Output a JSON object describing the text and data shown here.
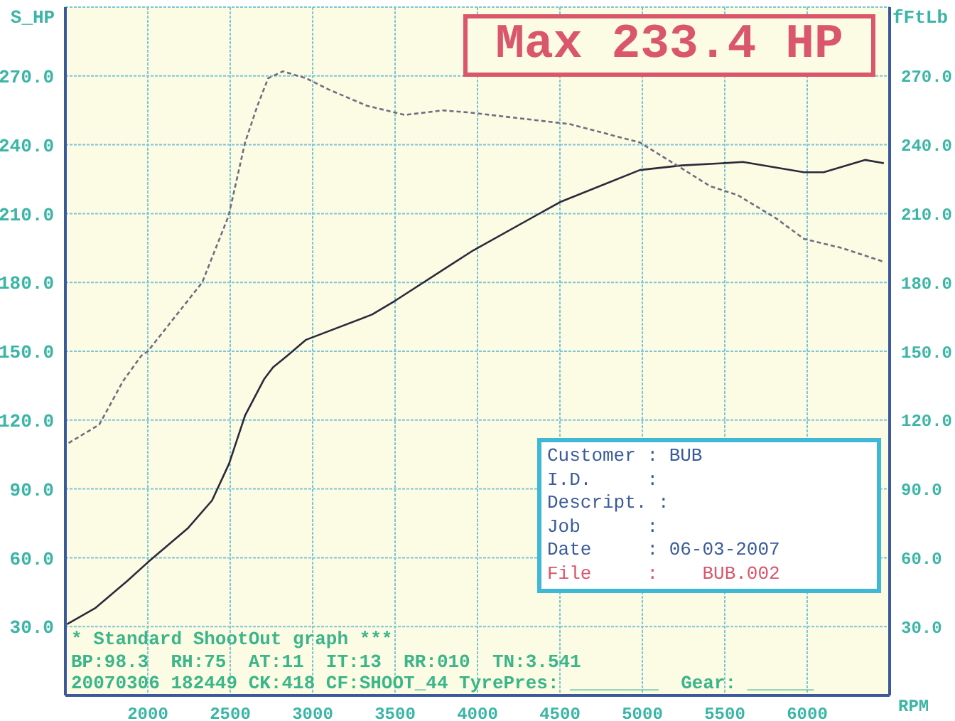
{
  "chart_data": {
    "type": "line",
    "xlabel": "RPM",
    "ylabel": "S_HP",
    "y2label": "fFtLb",
    "xlim": [
      1500,
      6500
    ],
    "xticks": [
      2000,
      2500,
      3000,
      3500,
      4000,
      4500,
      5000,
      5500,
      6000
    ],
    "ylim": [
      0,
      300
    ],
    "yticks": [
      {
        "value": 30,
        "label": "30.0"
      },
      {
        "value": 60,
        "label": "60.0"
      },
      {
        "value": 90,
        "label": "90.0"
      },
      {
        "value": 120,
        "label": "120.0"
      },
      {
        "value": 150,
        "label": "150.0"
      },
      {
        "value": 180,
        "label": "180.0"
      },
      {
        "value": 210,
        "label": "210.0"
      },
      {
        "value": 240,
        "label": "240.0"
      },
      {
        "value": 270,
        "label": "270.0"
      }
    ],
    "y2lim": [
      0,
      300
    ],
    "y2ticks": [
      {
        "value": 30,
        "label": "30.0"
      },
      {
        "value": 60,
        "label": "60.0"
      },
      {
        "value": 90,
        "label": "90.0"
      },
      {
        "value": 120,
        "label": "120.0"
      },
      {
        "value": 150,
        "label": "150.0"
      },
      {
        "value": 180,
        "label": "180.0"
      },
      {
        "value": 210,
        "label": "210.0"
      },
      {
        "value": 240,
        "label": "240.0"
      },
      {
        "value": 270,
        "label": "270.0"
      }
    ],
    "grid": true,
    "series": [
      {
        "color": "#2a2a3c",
        "line_style": "solid",
        "x": [
          1510,
          1680,
          1877,
          2000,
          2245,
          2390,
          2493,
          2590,
          2707,
          2760,
          2845,
          2960,
          3360,
          3500,
          3845,
          3975,
          4500,
          4985,
          5240,
          5500,
          5610,
          5980,
          6100,
          6350,
          6465
        ],
        "values": [
          31,
          38,
          50,
          58,
          73,
          85,
          101,
          122,
          138,
          143,
          148,
          155,
          166,
          172,
          188,
          194,
          215,
          229,
          231,
          232,
          232.5,
          228,
          228,
          233.4,
          232
        ]
      },
      {
        "color": "#6e6e80",
        "line_style": "dashed",
        "x": [
          1520,
          1705,
          1850,
          1960,
          2000,
          2330,
          2490,
          2590,
          2665,
          2730,
          2820,
          2960,
          3100,
          3330,
          3560,
          3790,
          3960,
          4560,
          4985,
          5210,
          5410,
          5580,
          5810,
          5980,
          6210,
          6465
        ],
        "values": [
          110,
          118,
          137,
          148,
          150,
          180,
          209,
          241,
          257,
          269,
          272,
          269,
          264,
          257,
          253,
          255,
          254,
          249,
          241,
          231,
          222,
          218,
          208,
          199,
          195,
          189
        ]
      }
    ],
    "annotations": [
      "Max 233.4 HP",
      "Customer : BUB",
      "I.D.     :",
      "Descript. :",
      "Job      :",
      "Date     : 06-03-2007",
      "File     :    BUB.002",
      "* Standard ShootOut graph ***",
      "BP:98.3  RH:75  AT:11  IT:13  RR:010  TN:3.541",
      "20070306 182449 CK:418 CF:SHOOT_44 TyrePres: ________  Gear: ______"
    ]
  }
}
